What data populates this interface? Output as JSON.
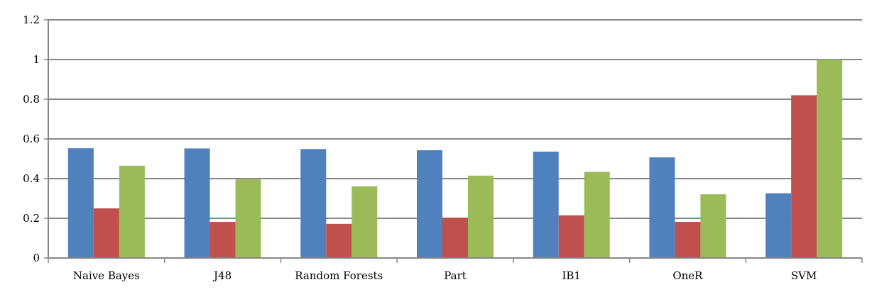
{
  "chart_data": {
    "type": "bar",
    "title": "",
    "xlabel": "",
    "ylabel": "",
    "ylim": [
      0,
      1.2
    ],
    "yticks": [
      0,
      0.2,
      0.4,
      0.6,
      0.8,
      1,
      1.2
    ],
    "ytick_labels": [
      "0",
      "0.2",
      "0.4",
      "0.6",
      "0.8",
      "1",
      "1.2"
    ],
    "grid": "horizontal",
    "legend": "none",
    "categories": [
      "Naive Bayes",
      "J48",
      "Random Forests",
      "Part",
      "IB1",
      "OneR",
      "SVM"
    ],
    "series": [
      {
        "color": "#4f81bd",
        "values": [
          0.553,
          0.552,
          0.549,
          0.543,
          0.536,
          0.507,
          0.326
        ]
      },
      {
        "color": "#c0504d",
        "values": [
          0.25,
          0.182,
          0.172,
          0.203,
          0.215,
          0.182,
          0.82
        ]
      },
      {
        "color": "#9bbb59",
        "values": [
          0.465,
          0.396,
          0.361,
          0.415,
          0.434,
          0.321,
          1.0
        ]
      }
    ]
  }
}
